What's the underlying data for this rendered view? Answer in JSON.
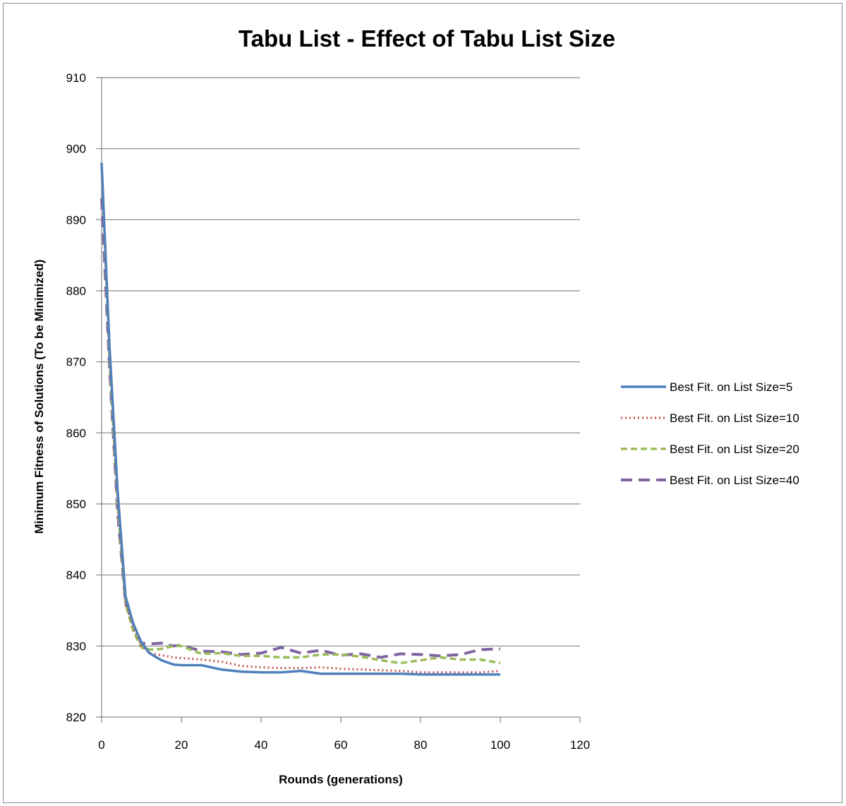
{
  "chart_data": {
    "type": "line",
    "title": "Tabu List - Effect of Tabu List Size",
    "xlabel": "Rounds (generations)",
    "ylabel": "Minimum Fitness of Solutions  (To be Minimized)",
    "xlim": [
      0,
      120
    ],
    "ylim": [
      820,
      910
    ],
    "xticks": [
      0,
      20,
      40,
      60,
      80,
      100,
      120
    ],
    "yticks": [
      820,
      830,
      840,
      850,
      860,
      870,
      880,
      890,
      900,
      910
    ],
    "grid": "horizontal",
    "legend_position": "right",
    "x": [
      0,
      2,
      4,
      6,
      8,
      10,
      12,
      15,
      18,
      20,
      25,
      30,
      35,
      40,
      45,
      50,
      55,
      60,
      65,
      70,
      75,
      80,
      85,
      90,
      95,
      100
    ],
    "series": [
      {
        "name": "Best Fit. on List Size=5",
        "color": "#4f81bd",
        "dash": "solid",
        "values": [
          898,
          872,
          852,
          837,
          833,
          830.5,
          829,
          828,
          827.4,
          827.3,
          827.3,
          826.7,
          826.4,
          826.3,
          826.3,
          826.5,
          826.1,
          826.1,
          826.1,
          826.1,
          826.1,
          826.0,
          826.0,
          826.0,
          826.0,
          826.0
        ]
      },
      {
        "name": "Best Fit. on List Size=10",
        "color": "#c0504d",
        "dash": "dotted",
        "values": [
          897,
          871,
          851,
          836,
          832.5,
          830,
          829,
          828.7,
          828.4,
          828.3,
          828.1,
          827.8,
          827.2,
          827.0,
          826.9,
          826.9,
          827.0,
          826.8,
          826.7,
          826.6,
          826.5,
          826.3,
          826.3,
          826.3,
          826.3,
          826.5
        ]
      },
      {
        "name": "Best Fit. on List Size=20",
        "color": "#9bbb59",
        "dash": "dashed",
        "values": [
          898,
          870,
          850,
          836,
          832,
          829.8,
          829.5,
          829.6,
          830,
          830,
          828.9,
          829.0,
          828.6,
          828.6,
          828.4,
          828.4,
          828.8,
          828.8,
          828.5,
          828.0,
          827.6,
          828.0,
          828.4,
          828.1,
          828.1,
          827.6
        ]
      },
      {
        "name": "Best Fit. on List Size=40",
        "color": "#8064a2",
        "dash": "longdash",
        "values": [
          893,
          869,
          849,
          836,
          833,
          830.4,
          830.3,
          830.4,
          830.0,
          830.1,
          829.3,
          829.2,
          828.8,
          829.0,
          829.8,
          829.0,
          829.4,
          828.7,
          828.9,
          828.4,
          828.9,
          828.8,
          828.6,
          828.8,
          829.5,
          829.6
        ]
      }
    ]
  }
}
